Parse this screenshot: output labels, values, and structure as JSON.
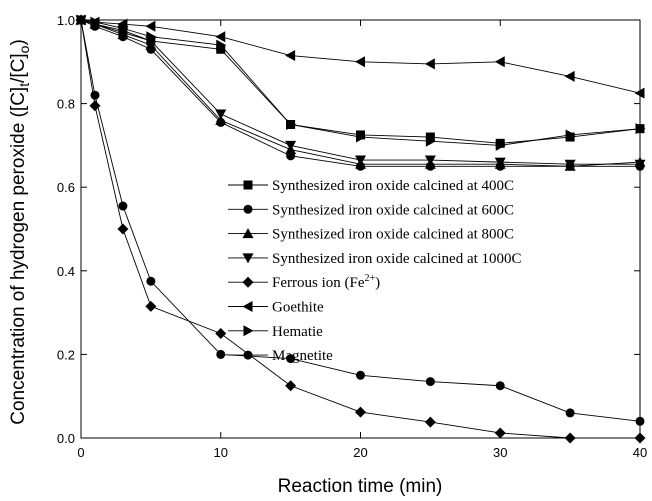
{
  "chart_data": {
    "type": "line",
    "xlabel": "Reaction time (min)",
    "ylabel_parts": [
      "Concentration of hydrogen peroxide ([C]",
      "t",
      "/[C]",
      "o",
      ")"
    ],
    "x": [
      0,
      1,
      3,
      5,
      10,
      15,
      20,
      25,
      30,
      35,
      40
    ],
    "xlim": [
      0,
      40
    ],
    "xticks": [
      0,
      10,
      20,
      30,
      40
    ],
    "ylim": [
      0,
      1
    ],
    "yticks": [
      {
        "value": 0,
        "label": "0.0"
      },
      0.2,
      0.4,
      0.6,
      0.8,
      {
        "value": 1,
        "label": "1.0"
      }
    ],
    "series": [
      {
        "name": "Synthesized iron oxide calcined at 400C",
        "color": "#000000",
        "marker": "square",
        "values": [
          1,
          0.99,
          0.97,
          0.95,
          0.93,
          0.75,
          0.725,
          0.72,
          0.705,
          0.72,
          0.74
        ]
      },
      {
        "name": "Synthesized iron oxide calcined at 600C",
        "color": "#000000",
        "marker": "circle",
        "values": [
          1,
          0.985,
          0.96,
          0.93,
          0.755,
          0.675,
          0.65,
          0.65,
          0.65,
          0.65,
          0.65
        ]
      },
      {
        "name": "Synthesized iron oxide calcined at 800C",
        "color": "#000000",
        "marker": "triangle-up",
        "values": [
          1,
          0.99,
          0.965,
          0.94,
          0.76,
          0.69,
          0.655,
          0.655,
          0.655,
          0.65,
          0.66
        ]
      },
      {
        "name": "Synthesized iron oxide calcined at 1000C",
        "color": "#000000",
        "marker": "triangle-down",
        "values": [
          1,
          0.99,
          0.975,
          0.95,
          0.775,
          0.7,
          0.665,
          0.665,
          0.66,
          0.655,
          0.655
        ]
      },
      {
        "name": "Ferrous ion (Fe",
        "name_sup": "2+",
        "name_end": ")",
        "color": "#000000",
        "marker": "diamond",
        "values": [
          1,
          0.795,
          0.5,
          0.315,
          0.25,
          0.125,
          0.062,
          0.038,
          0.012,
          0,
          0
        ]
      },
      {
        "name": "Goethite",
        "color": "#000000",
        "marker": "triangle-left",
        "values": [
          1,
          0.995,
          0.99,
          0.985,
          0.96,
          0.915,
          0.9,
          0.895,
          0.9,
          0.865,
          0.825
        ]
      },
      {
        "name": "Hematie",
        "color": "#000000",
        "marker": "triangle-right",
        "values": [
          1,
          0.995,
          0.98,
          0.96,
          0.94,
          0.75,
          0.72,
          0.71,
          0.7,
          0.725,
          0.74
        ]
      },
      {
        "name": "Magnetite",
        "color": "#000000",
        "marker": "circle",
        "values": [
          1,
          0.82,
          0.555,
          0.375,
          0.2,
          0.19,
          0.15,
          0.135,
          0.125,
          0.06,
          0.04
        ]
      }
    ]
  }
}
